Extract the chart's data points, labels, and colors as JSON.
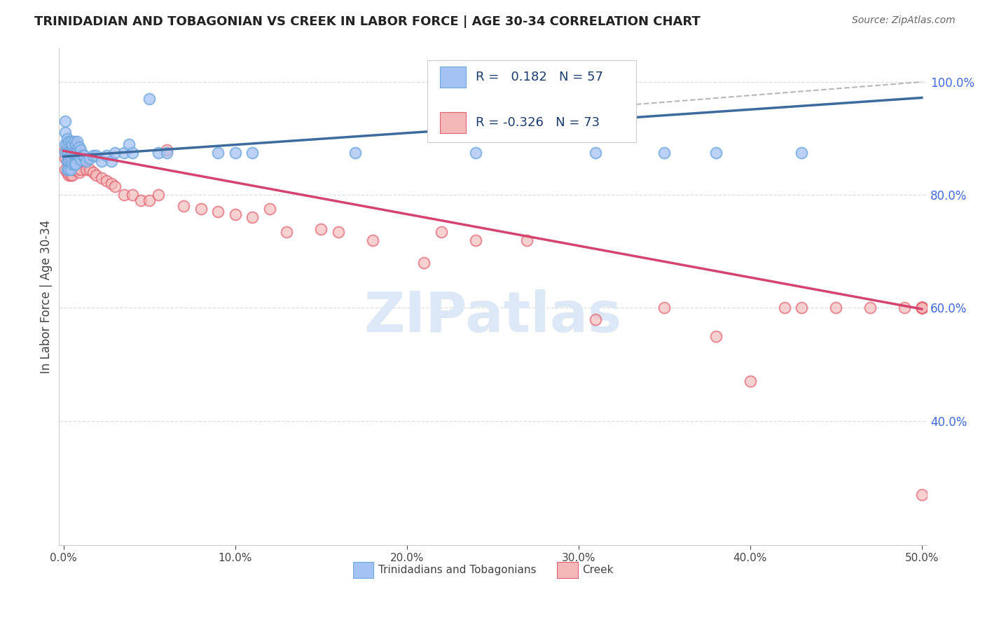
{
  "title": "TRINIDADIAN AND TOBAGONIAN VS CREEK IN LABOR FORCE | AGE 30-34 CORRELATION CHART",
  "source": "Source: ZipAtlas.com",
  "ylabel": "In Labor Force | Age 30-34",
  "xlim": [
    -0.003,
    0.503
  ],
  "ylim": [
    0.18,
    1.06
  ],
  "xticks": [
    0.0,
    0.1,
    0.2,
    0.3,
    0.4,
    0.5
  ],
  "xticklabels": [
    "0.0%",
    "10.0%",
    "20.0%",
    "30.0%",
    "40.0%",
    "50.0%"
  ],
  "ytick_vals": [
    0.4,
    0.6,
    0.8,
    1.0
  ],
  "ytick_labels": [
    "40.0%",
    "60.0%",
    "80.0%",
    "100.0%"
  ],
  "ytick_color": "#4169e1",
  "blue_color_face": "#a4c2f4",
  "blue_color_edge": "#6fa8dc",
  "pink_color_face": "#f4b8b8",
  "pink_color_edge": "#e06070",
  "blue_line_color": "#3d6b9e",
  "pink_line_color": "#d44470",
  "dashed_color": "#aaaaaa",
  "grid_color": "#dddddd",
  "legend_R_blue": "R =   0.182",
  "legend_N_blue": "N = 57",
  "legend_R_pink": "R = -0.326",
  "legend_N_pink": "N = 73",
  "watermark_text": "ZIPatlas",
  "watermark_color": "#dce8f5",
  "blue_trend": [
    0.0,
    0.5,
    0.868,
    0.972
  ],
  "pink_trend": [
    0.0,
    0.5,
    0.878,
    0.598
  ],
  "dashed_trend": [
    0.32,
    0.5,
    0.957,
    1.0
  ],
  "blue_x": [
    0.001,
    0.001,
    0.001,
    0.001,
    0.002,
    0.002,
    0.002,
    0.002,
    0.002,
    0.003,
    0.003,
    0.003,
    0.003,
    0.004,
    0.004,
    0.004,
    0.004,
    0.005,
    0.005,
    0.005,
    0.006,
    0.006,
    0.006,
    0.007,
    0.007,
    0.007,
    0.008,
    0.008,
    0.009,
    0.009,
    0.01,
    0.01,
    0.011,
    0.012,
    0.013,
    0.015,
    0.017,
    0.019,
    0.022,
    0.025,
    0.028,
    0.03,
    0.035,
    0.038,
    0.04,
    0.05,
    0.055,
    0.06,
    0.09,
    0.1,
    0.11,
    0.17,
    0.24,
    0.31,
    0.35,
    0.38,
    0.43
  ],
  "blue_y": [
    0.93,
    0.91,
    0.89,
    0.875,
    0.9,
    0.89,
    0.875,
    0.86,
    0.845,
    0.895,
    0.875,
    0.86,
    0.845,
    0.895,
    0.875,
    0.86,
    0.845,
    0.89,
    0.875,
    0.855,
    0.895,
    0.875,
    0.855,
    0.89,
    0.875,
    0.855,
    0.895,
    0.875,
    0.885,
    0.868,
    0.88,
    0.862,
    0.87,
    0.87,
    0.86,
    0.865,
    0.87,
    0.87,
    0.86,
    0.87,
    0.86,
    0.875,
    0.875,
    0.89,
    0.875,
    0.97,
    0.875,
    0.875,
    0.875,
    0.875,
    0.875,
    0.875,
    0.875,
    0.875,
    0.875,
    0.875,
    0.875
  ],
  "pink_x": [
    0.001,
    0.001,
    0.001,
    0.002,
    0.002,
    0.002,
    0.003,
    0.003,
    0.003,
    0.004,
    0.004,
    0.004,
    0.005,
    0.005,
    0.005,
    0.006,
    0.006,
    0.007,
    0.007,
    0.008,
    0.008,
    0.009,
    0.009,
    0.01,
    0.01,
    0.011,
    0.012,
    0.013,
    0.015,
    0.017,
    0.019,
    0.022,
    0.025,
    0.028,
    0.03,
    0.035,
    0.04,
    0.045,
    0.05,
    0.055,
    0.06,
    0.07,
    0.08,
    0.09,
    0.1,
    0.11,
    0.12,
    0.13,
    0.15,
    0.16,
    0.18,
    0.21,
    0.22,
    0.24,
    0.27,
    0.31,
    0.35,
    0.38,
    0.4,
    0.42,
    0.43,
    0.45,
    0.47,
    0.49,
    0.5,
    0.5,
    0.5,
    0.5,
    0.5,
    0.5,
    0.5,
    0.5,
    0.5
  ],
  "pink_y": [
    0.88,
    0.865,
    0.845,
    0.88,
    0.86,
    0.84,
    0.875,
    0.855,
    0.835,
    0.87,
    0.855,
    0.835,
    0.87,
    0.855,
    0.835,
    0.87,
    0.845,
    0.87,
    0.845,
    0.875,
    0.845,
    0.87,
    0.84,
    0.875,
    0.845,
    0.86,
    0.86,
    0.845,
    0.845,
    0.84,
    0.835,
    0.83,
    0.825,
    0.82,
    0.815,
    0.8,
    0.8,
    0.79,
    0.79,
    0.8,
    0.88,
    0.78,
    0.775,
    0.77,
    0.765,
    0.76,
    0.775,
    0.735,
    0.74,
    0.735,
    0.72,
    0.68,
    0.735,
    0.72,
    0.72,
    0.58,
    0.6,
    0.55,
    0.47,
    0.6,
    0.6,
    0.6,
    0.6,
    0.6,
    0.6,
    0.6,
    0.6,
    0.6,
    0.6,
    0.6,
    0.6,
    0.6,
    0.27
  ]
}
